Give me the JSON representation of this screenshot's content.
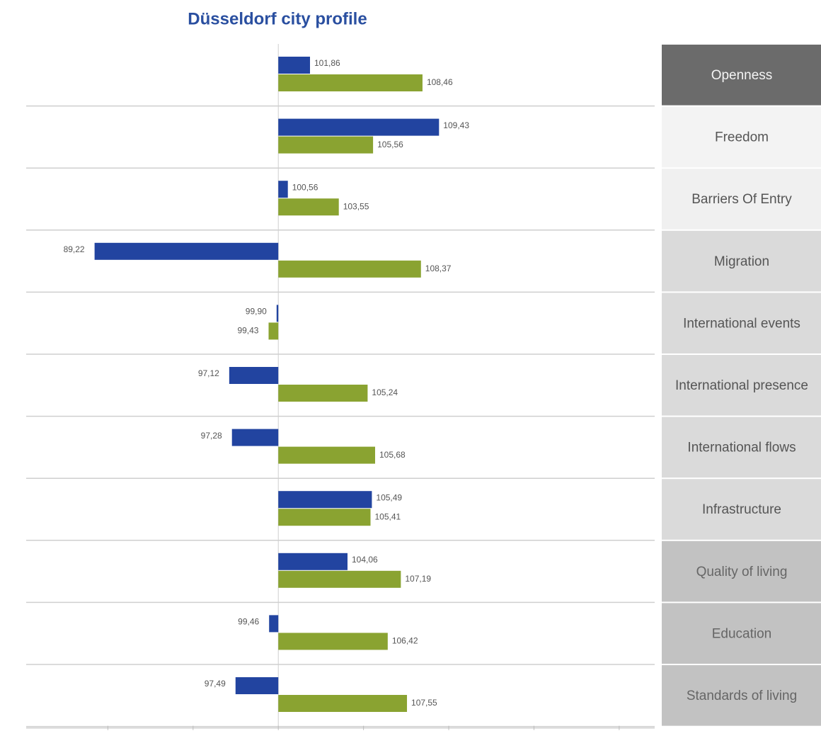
{
  "chart_data": {
    "type": "bar",
    "orientation": "horizontal",
    "title": "Düsseldorf city profile",
    "categories": [
      "Openness",
      "Freedom",
      "Barriers Of Entry",
      "Migration",
      "International events",
      "International presence",
      "International flows",
      "Infrastructure",
      "Quality of living",
      "Education",
      "Standards of living"
    ],
    "series": [
      {
        "color": "#2244a0",
        "values": [
          101.86,
          109.43,
          100.56,
          89.22,
          99.9,
          97.12,
          97.28,
          105.49,
          104.06,
          99.46,
          97.49
        ],
        "value_labels": [
          "101,86",
          "109,43",
          "100,56",
          "89,22",
          "99,90",
          "97,12",
          "97,28",
          "105,49",
          "104,06",
          "99,46",
          "97,49"
        ]
      },
      {
        "color": "#8aa331",
        "values": [
          108.46,
          105.56,
          103.55,
          108.37,
          99.43,
          105.24,
          105.68,
          105.41,
          107.19,
          106.42,
          107.55
        ],
        "value_labels": [
          "108,46",
          "105,56",
          "103,55",
          "108,37",
          "99,43",
          "105,24",
          "105,68",
          "105,41",
          "107,19",
          "106,42",
          "107,55"
        ]
      }
    ],
    "baseline": 100,
    "xlim": [
      85,
      122
    ],
    "xticks": [
      90,
      95,
      100,
      105,
      110,
      115,
      120
    ]
  }
}
